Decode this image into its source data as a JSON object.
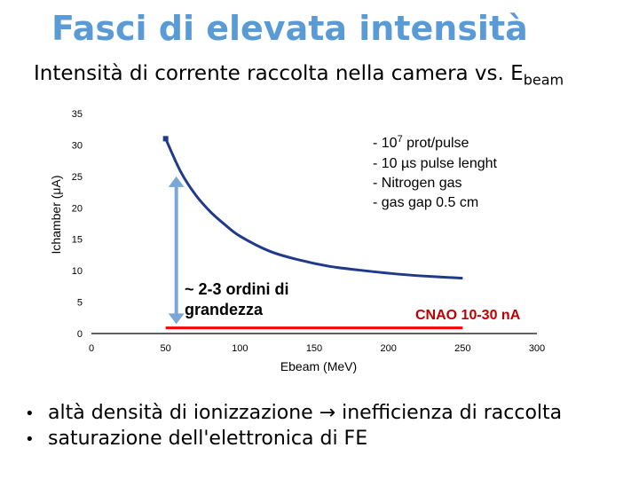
{
  "header": {
    "title": "Fasci di elevata intensità",
    "subtitle_main": "Intensità di corrente raccolta nella camera vs. E",
    "subtitle_sub": "beam"
  },
  "chart_data": {
    "type": "line",
    "xlabel": "Ebeam (MeV)",
    "ylabel": "Ichamber (μA)",
    "xlim": [
      0,
      300
    ],
    "ylim": [
      0,
      35
    ],
    "x_ticks": [
      "0",
      "50",
      "100",
      "150",
      "200",
      "250",
      "300"
    ],
    "y_ticks": [
      "0",
      "5",
      "10",
      "15",
      "20",
      "25",
      "30",
      "35"
    ],
    "series": [
      {
        "x": [
          50,
          60,
          70,
          80,
          90,
          100,
          120,
          140,
          160,
          180,
          200,
          220,
          250
        ],
        "y": [
          31,
          25.8,
          22.1,
          19.4,
          17.3,
          15.5,
          13.1,
          11.7,
          10.7,
          10.1,
          9.6,
          9.2,
          8.8
        ],
        "color": "#1f3a8a"
      }
    ],
    "reference_line": {
      "x_start": 50,
      "x_end": 250,
      "y": 0.9,
      "color": "#ff0000"
    },
    "double_arrow": {
      "x": 50,
      "y_from": 1.5,
      "y_to": 25,
      "color": "#7ba7d7"
    },
    "annotations": {
      "params": [
        "- 10",
        "7",
        " prot/pulse",
        "- 10 µs pulse lenght",
        "- Nitrogen gas",
        "- gas gap 0.5 cm"
      ],
      "orders_line1": "~ 2-3 ordini di",
      "orders_line2": "grandezza",
      "cnao": "CNAO 10-30 nA"
    }
  },
  "bullets": [
    "altà densità di ionizzazione → inefficienza di raccolta",
    "saturazione dell'elettronica di FE"
  ],
  "bullet_symbol": "•"
}
